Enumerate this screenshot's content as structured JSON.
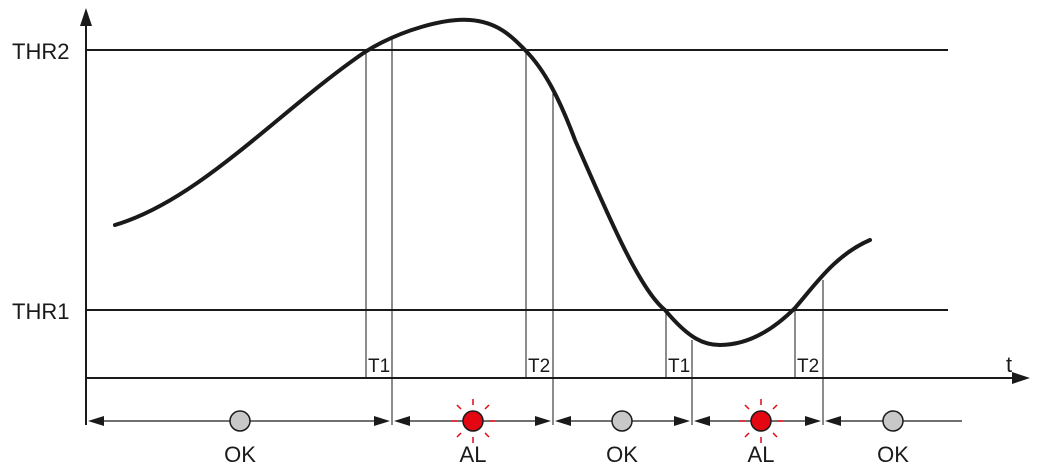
{
  "thresholds": {
    "upper": "THR2",
    "lower": "THR1"
  },
  "axis": {
    "time_label": "t"
  },
  "timers": [
    "T1",
    "T2",
    "T1",
    "T2"
  ],
  "states": [
    {
      "label": "OK",
      "led": "off"
    },
    {
      "label": "AL",
      "led": "alarm"
    },
    {
      "label": "OK",
      "led": "off"
    },
    {
      "label": "AL",
      "led": "alarm"
    },
    {
      "label": "OK",
      "led": "off"
    }
  ],
  "colors": {
    "line": "#1a1a1a",
    "led_off": "#c8c8c8",
    "led_alarm": "#e30613",
    "led_rays": "#e30613"
  }
}
